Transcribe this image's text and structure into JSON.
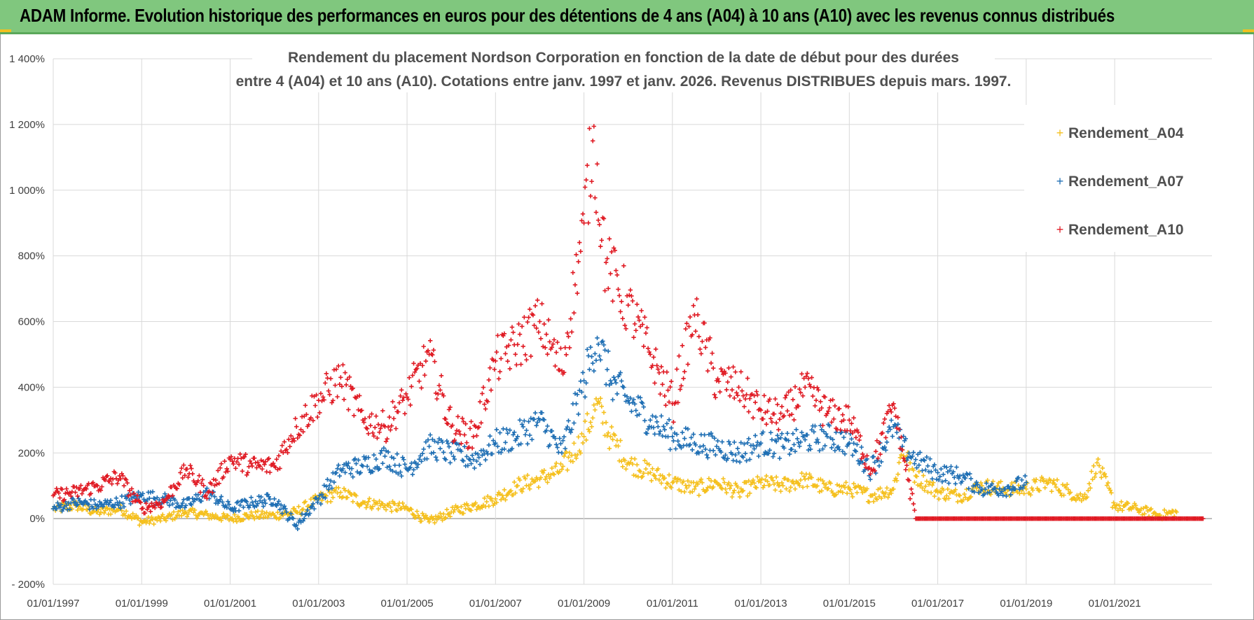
{
  "header": {
    "title": "ADAM Informe. Evolution historique des performances en euros pour des détentions de 4 ans (A04) à 10 ans (A10) avec les revenus connus distribués"
  },
  "chart_data": {
    "type": "scatter",
    "title_line1": "Rendement du placement Nordson Corporation en fonction de la date de début pour des durées",
    "title_line2": "entre 4 (A04) et 10 ans (A10).  Cotations entre janv. 1997 et janv. 2026. Revenus DISTRIBUES depuis mars. 1997.",
    "xlabel": "",
    "ylabel": "",
    "xlim": [
      1997.0,
      2023.2
    ],
    "ylim": [
      -200,
      1400
    ],
    "y_ticks": [
      -200,
      0,
      200,
      400,
      600,
      800,
      1000,
      1200,
      1400
    ],
    "y_tick_labels": [
      "- 200%",
      "0%",
      "200%",
      "400%",
      "600%",
      "800%",
      "1 000%",
      "1 200%",
      "1 400%"
    ],
    "x_ticks": [
      1997,
      1999,
      2001,
      2003,
      2005,
      2007,
      2009,
      2011,
      2013,
      2015,
      2017,
      2019,
      2021
    ],
    "x_tick_labels": [
      "01/01/1997",
      "01/01/1999",
      "01/01/2001",
      "01/01/2003",
      "01/01/2005",
      "01/01/2007",
      "01/01/2009",
      "01/01/2011",
      "01/01/2013",
      "01/01/2015",
      "01/01/2017",
      "01/01/2019",
      "01/01/2021"
    ],
    "legend_position": "top-right",
    "marker": "+",
    "series": [
      {
        "name": "Rendement_A04",
        "color": "#f5c01e",
        "x": [
          1997.0,
          1997.5,
          1998.0,
          1998.5,
          1999.0,
          1999.5,
          2000.0,
          2000.5,
          2001.0,
          2001.5,
          2002.0,
          2002.5,
          2003.0,
          2003.5,
          2004.0,
          2004.5,
          2005.0,
          2005.5,
          2006.0,
          2006.5,
          2007.0,
          2007.5,
          2008.0,
          2008.5,
          2009.0,
          2009.3,
          2009.6,
          2010.0,
          2010.5,
          2011.0,
          2011.5,
          2012.0,
          2012.5,
          2013.0,
          2013.5,
          2014.0,
          2014.5,
          2015.0,
          2015.5,
          2016.0,
          2016.2,
          2016.5,
          2017.0,
          2017.5,
          2018.0,
          2018.5,
          2019.0,
          2019.5,
          2020.0,
          2020.3,
          2020.6,
          2021.0,
          2021.5,
          2022.0,
          2022.4
        ],
        "values": [
          30,
          40,
          20,
          30,
          -10,
          0,
          20,
          10,
          0,
          10,
          10,
          20,
          60,
          80,
          50,
          40,
          30,
          -10,
          20,
          40,
          60,
          100,
          120,
          150,
          250,
          350,
          250,
          170,
          140,
          110,
          90,
          110,
          80,
          110,
          100,
          120,
          90,
          90,
          70,
          90,
          210,
          130,
          80,
          70,
          100,
          90,
          90,
          110,
          80,
          60,
          170,
          40,
          30,
          10,
          20
        ]
      },
      {
        "name": "Rendement_A07",
        "color": "#1f6fb4",
        "x": [
          1997.0,
          1997.5,
          1998.0,
          1998.5,
          1999.0,
          1999.5,
          2000.0,
          2000.5,
          2001.0,
          2001.5,
          2002.0,
          2002.5,
          2003.0,
          2003.5,
          2004.0,
          2004.5,
          2005.0,
          2005.5,
          2006.0,
          2006.5,
          2007.0,
          2007.5,
          2008.0,
          2008.5,
          2009.0,
          2009.3,
          2009.6,
          2010.0,
          2010.5,
          2011.0,
          2011.5,
          2012.0,
          2012.5,
          2013.0,
          2013.5,
          2014.0,
          2014.5,
          2015.0,
          2015.5,
          2016.0,
          2016.2,
          2016.5,
          2017.0,
          2017.5,
          2018.0,
          2018.5,
          2019.0
        ],
        "values": [
          30,
          50,
          40,
          50,
          70,
          60,
          40,
          80,
          30,
          50,
          60,
          -20,
          60,
          150,
          160,
          190,
          150,
          220,
          200,
          180,
          230,
          250,
          300,
          200,
          420,
          550,
          420,
          360,
          300,
          250,
          230,
          220,
          200,
          230,
          220,
          240,
          250,
          230,
          150,
          280,
          220,
          180,
          140,
          130,
          90,
          90,
          110
        ]
      },
      {
        "name": "Rendement_A10",
        "color": "#e01b24",
        "x": [
          1997.0,
          1997.5,
          1998.0,
          1998.5,
          1999.0,
          1999.5,
          2000.0,
          2000.5,
          2001.0,
          2001.5,
          2002.0,
          2002.5,
          2003.0,
          2003.5,
          2004.0,
          2004.5,
          2005.0,
          2005.5,
          2006.0,
          2006.5,
          2007.0,
          2007.5,
          2008.0,
          2008.5,
          2009.0,
          2009.2,
          2009.5,
          2010.0,
          2010.5,
          2011.0,
          2011.5,
          2012.0,
          2012.5,
          2013.0,
          2013.5,
          2014.0,
          2014.5,
          2015.0,
          2015.5,
          2016.0,
          2016.5,
          2017.0,
          2018.0,
          2019.0,
          2020.0,
          2021.0,
          2022.0,
          2023.0
        ],
        "values": [
          70,
          80,
          100,
          130,
          30,
          50,
          150,
          80,
          180,
          160,
          160,
          280,
          360,
          430,
          300,
          280,
          370,
          500,
          280,
          250,
          480,
          530,
          600,
          450,
          900,
          1150,
          780,
          650,
          500,
          350,
          620,
          420,
          400,
          330,
          310,
          400,
          320,
          300,
          150,
          350,
          0,
          0,
          0,
          0,
          0,
          0,
          0,
          0
        ]
      }
    ]
  }
}
